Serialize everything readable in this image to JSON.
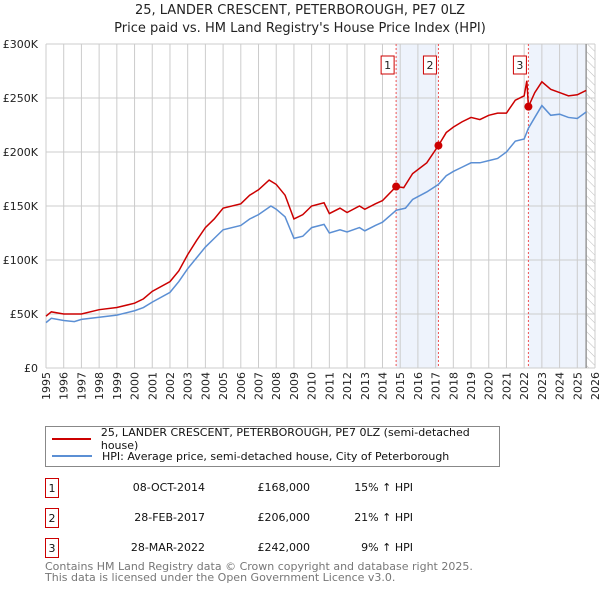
{
  "chart_data": {
    "type": "line",
    "title": "25, LANDER CRESCENT, PETERBOROUGH, PE7 0LZ",
    "subtitle": "Price paid vs. HM Land Registry's House Price Index (HPI)",
    "xlim": [
      1995,
      2026
    ],
    "ylim": [
      0,
      300000
    ],
    "x_ticks": [
      "1995",
      "1996",
      "1997",
      "1998",
      "1999",
      "2000",
      "2001",
      "2002",
      "2003",
      "2004",
      "2005",
      "2006",
      "2007",
      "2008",
      "2009",
      "2010",
      "2011",
      "2012",
      "2013",
      "2014",
      "2015",
      "2016",
      "2017",
      "2018",
      "2019",
      "2020",
      "2021",
      "2022",
      "2023",
      "2024",
      "2025",
      "2026"
    ],
    "y_ticks": [
      {
        "v": 0,
        "label": "£0"
      },
      {
        "v": 50000,
        "label": "£50K"
      },
      {
        "v": 100000,
        "label": "£100K"
      },
      {
        "v": 150000,
        "label": "£150K"
      },
      {
        "v": 200000,
        "label": "£200K"
      },
      {
        "v": 250000,
        "label": "£250K"
      },
      {
        "v": 300000,
        "label": "£300K"
      }
    ],
    "grid": true,
    "present_year": 2025.5,
    "series": [
      {
        "name": "25, LANDER CRESCENT, PETERBOROUGH, PE7 0LZ (semi-detached house)",
        "color": "#cc0000",
        "x": [
          1995,
          1995.3,
          1996,
          1997,
          1998,
          1999,
          2000,
          2000.5,
          2001,
          2002,
          2002.5,
          2003,
          2003.5,
          2004,
          2004.5,
          2005,
          2006,
          2006.5,
          2007,
          2007.6,
          2008,
          2008.5,
          2009,
          2009.5,
          2010,
          2010.7,
          2011,
          2011.6,
          2012,
          2012.7,
          2013,
          2013.6,
          2014,
          2014.77,
          2015.2,
          2015.7,
          2016.5,
          2017.16,
          2017.6,
          2018,
          2018.5,
          2019,
          2019.5,
          2020,
          2020.5,
          2021,
          2021.5,
          2022,
          2022.15,
          2022.24,
          2022.6,
          2023,
          2023.5,
          2024,
          2024.5,
          2025,
          2025.5
        ],
        "y": [
          48000,
          52000,
          50000,
          50000,
          54000,
          56000,
          60000,
          64000,
          71000,
          80000,
          90000,
          105000,
          118000,
          130000,
          138000,
          148000,
          152000,
          160000,
          165000,
          174000,
          170000,
          160000,
          138000,
          142000,
          150000,
          153000,
          143000,
          148000,
          144000,
          150000,
          147000,
          152000,
          155000,
          168000,
          167000,
          180000,
          190000,
          206000,
          218000,
          223000,
          228000,
          232000,
          230000,
          234000,
          236000,
          236000,
          248000,
          252000,
          266000,
          242000,
          255000,
          265000,
          258000,
          255000,
          252000,
          253000,
          257000
        ]
      },
      {
        "name": "HPI: Average price, semi-detached house, City of Peterborough",
        "color": "#5b8fd4",
        "x": [
          1995,
          1995.3,
          1996,
          1996.6,
          1997,
          1998,
          1999,
          2000,
          2000.5,
          2001,
          2002,
          2002.5,
          2003,
          2003.5,
          2004,
          2004.5,
          2005,
          2006,
          2006.5,
          2007,
          2007.7,
          2008,
          2008.5,
          2009,
          2009.5,
          2010,
          2010.7,
          2011,
          2011.6,
          2012,
          2012.7,
          2013,
          2013.6,
          2014,
          2014.77,
          2015.3,
          2015.7,
          2016.5,
          2017.16,
          2017.6,
          2018,
          2018.5,
          2019,
          2019.5,
          2020,
          2020.5,
          2021,
          2021.5,
          2022,
          2022.24,
          2022.6,
          2023,
          2023.5,
          2024,
          2024.5,
          2025,
          2025.5
        ],
        "y": [
          42000,
          46000,
          44000,
          43000,
          45000,
          47000,
          49000,
          53000,
          56000,
          61000,
          70000,
          80000,
          92000,
          102000,
          112000,
          120000,
          128000,
          132000,
          138000,
          142000,
          150000,
          147000,
          140000,
          120000,
          122000,
          130000,
          133000,
          125000,
          128000,
          126000,
          130000,
          127000,
          132000,
          135000,
          146000,
          148000,
          156000,
          163000,
          170000,
          178000,
          182000,
          186000,
          190000,
          190000,
          192000,
          194000,
          200000,
          210000,
          212000,
          222000,
          232000,
          243000,
          234000,
          235000,
          232000,
          231000,
          237000
        ]
      }
    ],
    "sales": [
      {
        "id": "1",
        "x": 2014.77,
        "y": 168000,
        "date": "08-OCT-2014",
        "price": "£168,000",
        "hpi": "15% ↑ HPI"
      },
      {
        "id": "2",
        "x": 2017.16,
        "y": 206000,
        "date": "28-FEB-2017",
        "price": "£206,000",
        "hpi": "21% ↑ HPI"
      },
      {
        "id": "3",
        "x": 2022.24,
        "y": 242000,
        "date": "28-MAR-2022",
        "price": "£242,000",
        "hpi": " 9% ↑ HPI"
      }
    ],
    "shaded_ranges": [
      [
        2014.77,
        2017.16
      ],
      [
        2022.24,
        2025.5
      ]
    ]
  },
  "legend": {
    "property": "25, LANDER CRESCENT, PETERBOROUGH, PE7 0LZ (semi-detached house)",
    "hpi": "HPI: Average price, semi-detached house, City of Peterborough"
  },
  "footer": {
    "line1": "Contains HM Land Registry data © Crown copyright and database right 2025.",
    "line2": "This data is licensed under the Open Government Licence v3.0."
  }
}
